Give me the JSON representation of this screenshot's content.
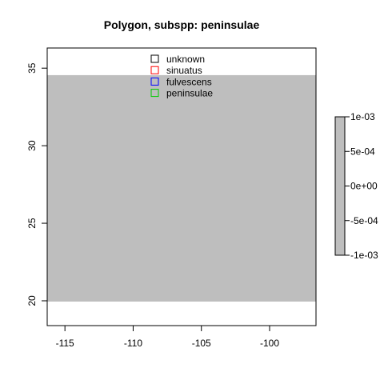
{
  "chart_data": {
    "type": "heatmap",
    "title": "Polygon, subspp: peninsulae",
    "xlabel": "",
    "ylabel": "",
    "xlim": [
      -116.3,
      -96.6
    ],
    "ylim": [
      18.4,
      36.3
    ],
    "x_ticks": [
      -115,
      -110,
      -105,
      -100
    ],
    "y_ticks": [
      20,
      25,
      30,
      35
    ],
    "x_tick_labels": [
      "-115",
      "-110",
      "-105",
      "-100"
    ],
    "y_tick_labels": [
      "20",
      "25",
      "30",
      "35"
    ],
    "grid": false,
    "raster": {
      "x_range": [
        -116.3,
        -96.6
      ],
      "y_range": [
        19.95,
        34.55
      ],
      "value": 0,
      "fill": "#bebebe"
    },
    "legend": {
      "placement": "top-center",
      "entries": [
        {
          "label": "unknown",
          "color": "#000000"
        },
        {
          "label": "sinuatus",
          "color": "#ff0000"
        },
        {
          "label": "fulvescens",
          "color": "#0000ff"
        },
        {
          "label": "peninsulae",
          "color": "#00cc00"
        }
      ]
    },
    "colorbar": {
      "placement": "right",
      "range": [
        -0.001,
        0.001
      ],
      "ticks": [
        0.001,
        0.0005,
        0,
        -0.0005,
        -0.001
      ],
      "tick_labels": [
        "1e-03",
        "5e-04",
        "0e+00",
        "-5e-04",
        "-1e-03"
      ],
      "fill": "#bebebe"
    }
  }
}
